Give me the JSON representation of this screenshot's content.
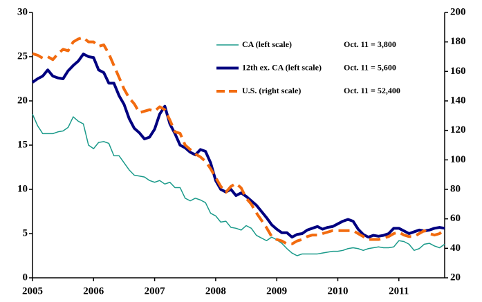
{
  "chart_data": {
    "type": "line",
    "x": [
      2005,
      2005.083,
      2005.167,
      2005.25,
      2005.333,
      2005.417,
      2005.5,
      2005.583,
      2005.667,
      2005.75,
      2005.833,
      2005.917,
      2006,
      2006.083,
      2006.167,
      2006.25,
      2006.333,
      2006.417,
      2006.5,
      2006.583,
      2006.667,
      2006.75,
      2006.833,
      2006.917,
      2007,
      2007.083,
      2007.167,
      2007.25,
      2007.333,
      2007.417,
      2007.5,
      2007.583,
      2007.667,
      2007.75,
      2007.833,
      2007.917,
      2008,
      2008.083,
      2008.167,
      2008.25,
      2008.333,
      2008.417,
      2008.5,
      2008.583,
      2008.667,
      2008.75,
      2008.833,
      2008.917,
      2009,
      2009.083,
      2009.167,
      2009.25,
      2009.333,
      2009.417,
      2009.5,
      2009.583,
      2009.667,
      2009.75,
      2009.833,
      2009.917,
      2010,
      2010.083,
      2010.167,
      2010.25,
      2010.333,
      2010.417,
      2010.5,
      2010.583,
      2010.667,
      2010.75,
      2010.833,
      2010.917,
      2011,
      2011.083,
      2011.167,
      2011.25,
      2011.333,
      2011.417,
      2011.5,
      2011.583,
      2011.667,
      2011.75
    ],
    "xlim": [
      2005,
      2011.75
    ],
    "xticks": [
      2005,
      2006,
      2007,
      2008,
      2009,
      2010,
      2011
    ],
    "ylim": [
      0,
      30
    ],
    "yticks": [
      0,
      5,
      10,
      15,
      20,
      25,
      30
    ],
    "y2lim": [
      20,
      200
    ],
    "y2ticks": [
      20,
      40,
      60,
      80,
      100,
      120,
      140,
      160,
      180,
      200
    ],
    "series": [
      {
        "name": "CA (left scale)",
        "annotation": "Oct. 11 = 3,800",
        "color": "#1a9a8a",
        "width": 1.5,
        "dash": false,
        "values": [
          18.5,
          17.2,
          16.3,
          16.3,
          16.3,
          16.5,
          16.6,
          17.0,
          18.2,
          17.7,
          17.4,
          15.0,
          14.6,
          15.3,
          15.4,
          15.2,
          13.8,
          13.8,
          13.0,
          12.2,
          11.6,
          11.5,
          11.4,
          11.0,
          10.8,
          11.0,
          10.6,
          10.8,
          10.2,
          10.2,
          9.0,
          8.7,
          9.0,
          8.8,
          8.5,
          7.3,
          7.0,
          6.3,
          6.4,
          5.7,
          5.6,
          5.4,
          5.9,
          5.6,
          4.8,
          4.5,
          4.2,
          4.6,
          4.3,
          3.9,
          3.3,
          2.8,
          2.5,
          2.7,
          2.7,
          2.7,
          2.7,
          2.8,
          2.9,
          3.0,
          3.0,
          3.1,
          3.3,
          3.4,
          3.3,
          3.1,
          3.3,
          3.4,
          3.5,
          3.4,
          3.4,
          3.5,
          4.2,
          4.1,
          3.8,
          3.1,
          3.3,
          3.8,
          3.9,
          3.6,
          3.4,
          3.8
        ]
      },
      {
        "name": "12th ex. CA (left scale)",
        "annotation": "Oct. 11 = 5,600",
        "color": "#000080",
        "width": 4,
        "dash": false,
        "values": [
          22.1,
          22.5,
          22.8,
          23.5,
          22.8,
          22.6,
          22.5,
          23.4,
          24.0,
          24.5,
          25.3,
          25.0,
          24.9,
          23.5,
          23.2,
          22.0,
          22.0,
          20.6,
          19.6,
          18.0,
          16.9,
          16.4,
          15.7,
          15.9,
          16.8,
          18.5,
          19.4,
          17.4,
          16.3,
          15.0,
          14.7,
          14.2,
          13.9,
          14.5,
          14.3,
          13.0,
          11.0,
          10.0,
          9.7,
          10.0,
          9.3,
          9.6,
          9.2,
          8.7,
          8.2,
          7.5,
          6.8,
          6.0,
          5.5,
          5.1,
          5.1,
          4.6,
          4.9,
          5.0,
          5.4,
          5.6,
          5.8,
          5.5,
          5.7,
          5.8,
          6.1,
          6.4,
          6.6,
          6.4,
          5.5,
          4.9,
          4.6,
          4.8,
          4.7,
          4.8,
          5.0,
          5.6,
          5.6,
          5.3,
          5.0,
          5.2,
          5.4,
          5.3,
          5.4,
          5.6,
          5.7,
          5.6
        ]
      },
      {
        "name": "U.S. (right scale)",
        "annotation": "Oct. 11 = 52,400",
        "color": "#f26b0f",
        "width": 4,
        "dash": true,
        "axis": "y2",
        "values": [
          172,
          171,
          169,
          170,
          168,
          172,
          175,
          174,
          180,
          182,
          183,
          180,
          180,
          177,
          178,
          172,
          164,
          156,
          148,
          142,
          138,
          132,
          133,
          134,
          133,
          136,
          134,
          127,
          119,
          118,
          110,
          107,
          104,
          102,
          99,
          94,
          88,
          82,
          78,
          82,
          84,
          81,
          74,
          70,
          64,
          59,
          54,
          48,
          46,
          45,
          43,
          43,
          45,
          46,
          48,
          49,
          49,
          50,
          51,
          52,
          52,
          52,
          52,
          52,
          50,
          48,
          46,
          46,
          46,
          47,
          48,
          50,
          51,
          49,
          48,
          48,
          50,
          52,
          50,
          49,
          50,
          53
        ]
      }
    ]
  }
}
